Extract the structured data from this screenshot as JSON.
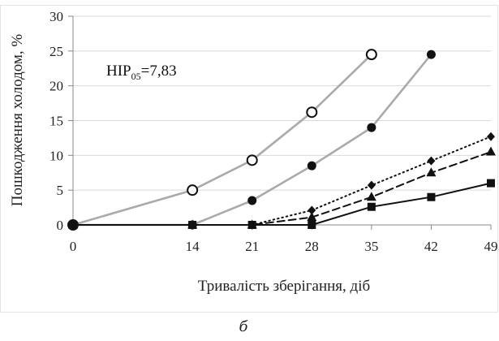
{
  "chart_data": {
    "type": "line",
    "xlabel": "Тривалість зберігання, діб",
    "ylabel": "Пошкодження холодом, %",
    "x": [
      0,
      14,
      21,
      28,
      35,
      42,
      49
    ],
    "xticks": [
      "0",
      "14",
      "21",
      "28",
      "35",
      "42",
      "49"
    ],
    "ylim": [
      0,
      30
    ],
    "yticks": [
      "0",
      "5",
      "10",
      "15",
      "20",
      "25",
      "30"
    ],
    "grid": "horizontal",
    "annotation": {
      "base": "НІР",
      "subscript": "05",
      "value": "=7,83"
    },
    "panel_label": "б",
    "series": [
      {
        "marker": "open-circle",
        "color": "#aaaaaa",
        "line": "solid",
        "points": [
          [
            0,
            0
          ],
          [
            14,
            5
          ],
          [
            21,
            9.3
          ],
          [
            28,
            16.2
          ],
          [
            35,
            24.5
          ]
        ]
      },
      {
        "marker": "filled-circle",
        "color": "#aaaaaa",
        "line": "solid",
        "points": [
          [
            0,
            0
          ],
          [
            14,
            0
          ],
          [
            21,
            3.5
          ],
          [
            28,
            8.5
          ],
          [
            35,
            14
          ],
          [
            42,
            24.5
          ]
        ]
      },
      {
        "marker": "diamond",
        "color": "#111111",
        "line": "dotted",
        "points": [
          [
            0,
            0
          ],
          [
            14,
            0
          ],
          [
            21,
            0
          ],
          [
            28,
            2.1
          ],
          [
            35,
            5.7
          ],
          [
            42,
            9.2
          ],
          [
            49,
            12.7
          ]
        ]
      },
      {
        "marker": "triangle",
        "color": "#111111",
        "line": "dashed",
        "points": [
          [
            0,
            0
          ],
          [
            14,
            0
          ],
          [
            21,
            0
          ],
          [
            28,
            1.1
          ],
          [
            35,
            4
          ],
          [
            42,
            7.5
          ],
          [
            49,
            10.5
          ]
        ]
      },
      {
        "marker": "square",
        "color": "#111111",
        "line": "solid",
        "points": [
          [
            0,
            0
          ],
          [
            14,
            0
          ],
          [
            21,
            0
          ],
          [
            28,
            0
          ],
          [
            35,
            2.6
          ],
          [
            42,
            4
          ],
          [
            49,
            6
          ]
        ]
      }
    ]
  }
}
